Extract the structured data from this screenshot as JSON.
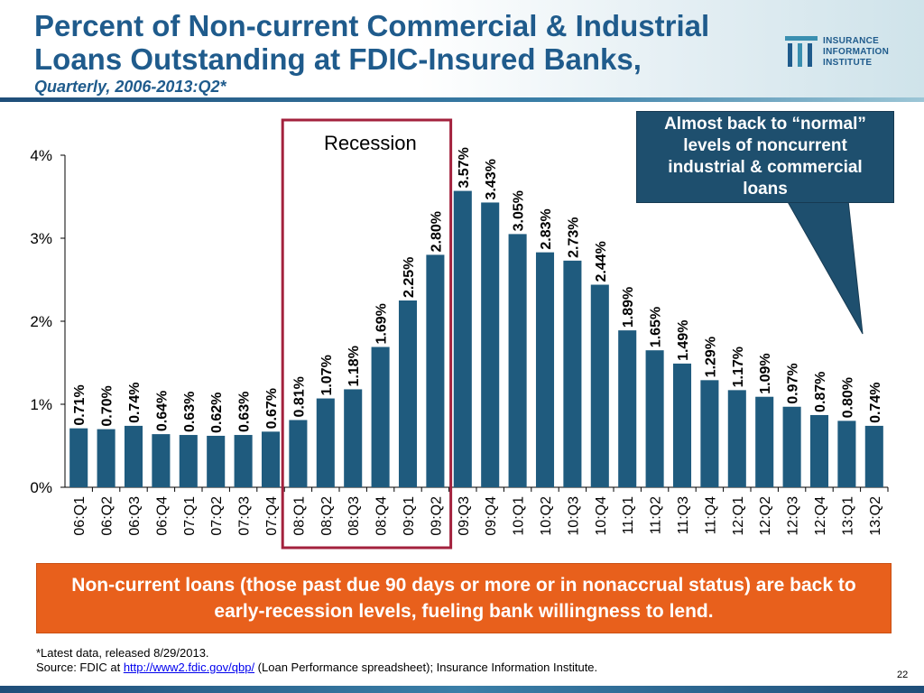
{
  "title_line1": "Percent of Non-current Commercial & Industrial",
  "title_line2": "Loans Outstanding at FDIC-Insured Banks,",
  "subtitle": "Quarterly, 2006-2013:Q2*",
  "logo": {
    "line1": "INSURANCE",
    "line2": "INFORMATION",
    "line3": "INSTITUTE"
  },
  "callout": "Almost back to “normal” levels of noncurrent industrial & commercial loans",
  "banner": "Non-current loans (those past due 90 days or more or in nonaccrual status) are back to early-recession levels, fueling bank willingness to lend.",
  "footnote": {
    "line1": "*Latest data, released 8/29/2013.",
    "source_prefix": "Source:  FDIC at ",
    "link_text": "http://www2.fdic.gov/qbp/",
    "source_suffix": " (Loan Performance spreadsheet); Insurance Information Institute."
  },
  "page_number": "22",
  "colors": {
    "bar": "#1f5b7e",
    "recession_box": "#a3213d",
    "callout": "#1e4f6e",
    "banner": "#e8601c",
    "title": "#1f5b8c"
  },
  "chart_data": {
    "type": "bar",
    "categories": [
      "06:Q1",
      "06:Q2",
      "06:Q3",
      "06:Q4",
      "07:Q1",
      "07:Q2",
      "07:Q3",
      "07:Q4",
      "08:Q1",
      "08;Q2",
      "08:Q3",
      "08:Q4",
      "09:Q1",
      "09:Q2",
      "09:Q3",
      "09:Q4",
      "10:Q1",
      "10:Q2",
      "10:Q3",
      "10:Q4",
      "11:Q1",
      "11:Q2",
      "11:Q3",
      "11:Q4",
      "12:Q1",
      "12:Q2",
      "12:Q3",
      "12:Q4",
      "13:Q1",
      "13:Q2"
    ],
    "values": [
      0.71,
      0.7,
      0.74,
      0.64,
      0.63,
      0.62,
      0.63,
      0.67,
      0.81,
      1.07,
      1.18,
      1.69,
      2.25,
      2.8,
      3.57,
      3.43,
      3.05,
      2.83,
      2.73,
      2.44,
      1.89,
      1.65,
      1.49,
      1.29,
      1.17,
      1.09,
      0.97,
      0.87,
      0.8,
      0.74
    ],
    "labels": [
      "0.71%",
      "0.70%",
      "0.74%",
      "0.64%",
      "0.63%",
      "0.62%",
      "0.63%",
      "0.67%",
      "0.81%",
      "1.07%",
      "1.18%",
      "1.69%",
      "2.25%",
      "2.80%",
      "3.57%",
      "3.43%",
      "3.05%",
      "2.83%",
      "2.73%",
      "2.44%",
      "1.89%",
      "1.65%",
      "1.49%",
      "1.29%",
      "1.17%",
      "1.09%",
      "0.97%",
      "0.87%",
      "0.80%",
      "0.74%"
    ],
    "yticks": [
      "0%",
      "1%",
      "2%",
      "3%",
      "4%"
    ],
    "ylim": [
      0,
      4
    ],
    "grid": false,
    "recession": {
      "label": "Recession",
      "start_category": "08:Q1",
      "end_category": "09:Q2"
    }
  }
}
